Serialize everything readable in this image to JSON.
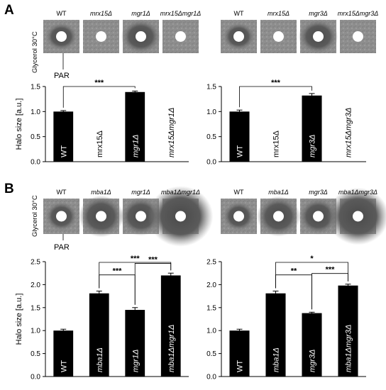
{
  "figure": {
    "panel_A": "A",
    "panel_B": "B",
    "condition_label": "Glycerol 30°C",
    "par_label": "PAR"
  },
  "plates": [
    {
      "labels": [
        "WT",
        "mrx15Δ",
        "mgr1Δ",
        "mrx15Δmgr1Δ"
      ],
      "italic": [
        false,
        true,
        true,
        true
      ]
    },
    {
      "labels": [
        "WT",
        "mrx15Δ",
        "mgr3Δ",
        "mrx15Δmgr3Δ"
      ],
      "italic": [
        false,
        true,
        true,
        true
      ]
    },
    {
      "labels": [
        "WT",
        "mba1Δ",
        "mgr1Δ",
        "mba1Δmgr1Δ"
      ],
      "italic": [
        false,
        true,
        true,
        true
      ]
    },
    {
      "labels": [
        "WT",
        "mba1Δ",
        "mgr3Δ",
        "mba1Δmgr3Δ"
      ],
      "italic": [
        false,
        true,
        true,
        true
      ]
    }
  ],
  "chart_data": [
    {
      "type": "bar",
      "ylabel": "Halo size [a.u.]",
      "ylim": [
        0,
        1.5
      ],
      "yticks": [
        "0.0",
        "0.5",
        "1.0",
        "1.5"
      ],
      "categories": [
        "WT",
        "mrx15Δ",
        "mgr1Δ",
        "mrx15Δmgr1Δ"
      ],
      "values": [
        1.0,
        0,
        1.39,
        0
      ],
      "errors": [
        0.02,
        0,
        0.02,
        0
      ],
      "significance": [
        {
          "from": 0,
          "to": 2,
          "label": "***"
        }
      ]
    },
    {
      "type": "bar",
      "ylabel": "",
      "ylim": [
        0,
        1.5
      ],
      "yticks": [
        "0.0",
        "0.5",
        "1.0",
        "1.5"
      ],
      "categories": [
        "WT",
        "mrx15Δ",
        "mgr3Δ",
        "mrx15Δmgr3Δ"
      ],
      "values": [
        1.0,
        0,
        1.32,
        0
      ],
      "errors": [
        0.03,
        0,
        0.04,
        0
      ],
      "significance": [
        {
          "from": 0,
          "to": 2,
          "label": "***"
        }
      ]
    },
    {
      "type": "bar",
      "ylabel": "Halo size [a.u.]",
      "ylim": [
        0,
        2.5
      ],
      "yticks": [
        "0.0",
        "0.5",
        "1.0",
        "1.5",
        "2.0",
        "2.5"
      ],
      "categories": [
        "WT",
        "mba1Δ",
        "mgr1Δ",
        "mba1Δmgr1Δ"
      ],
      "values": [
        1.0,
        1.81,
        1.45,
        2.2
      ],
      "errors": [
        0.03,
        0.05,
        0.05,
        0.05
      ],
      "significance": [
        {
          "from": 1,
          "to": 3,
          "label": "***"
        },
        {
          "from": 1,
          "to": 2,
          "label": "***"
        },
        {
          "from": 2,
          "to": 3,
          "label": "***"
        }
      ]
    },
    {
      "type": "bar",
      "ylabel": "",
      "ylim": [
        0,
        2.5
      ],
      "yticks": [
        "0.0",
        "0.5",
        "1.0",
        "1.5",
        "2.0",
        "2.5"
      ],
      "categories": [
        "WT",
        "mba1Δ",
        "mgr3Δ",
        "mba1Δmgr3Δ"
      ],
      "values": [
        1.0,
        1.81,
        1.38,
        1.98
      ],
      "errors": [
        0.03,
        0.05,
        0.02,
        0.03
      ],
      "significance": [
        {
          "from": 1,
          "to": 3,
          "label": "*"
        },
        {
          "from": 1,
          "to": 2,
          "label": "**"
        },
        {
          "from": 2,
          "to": 3,
          "label": "***"
        }
      ]
    }
  ]
}
